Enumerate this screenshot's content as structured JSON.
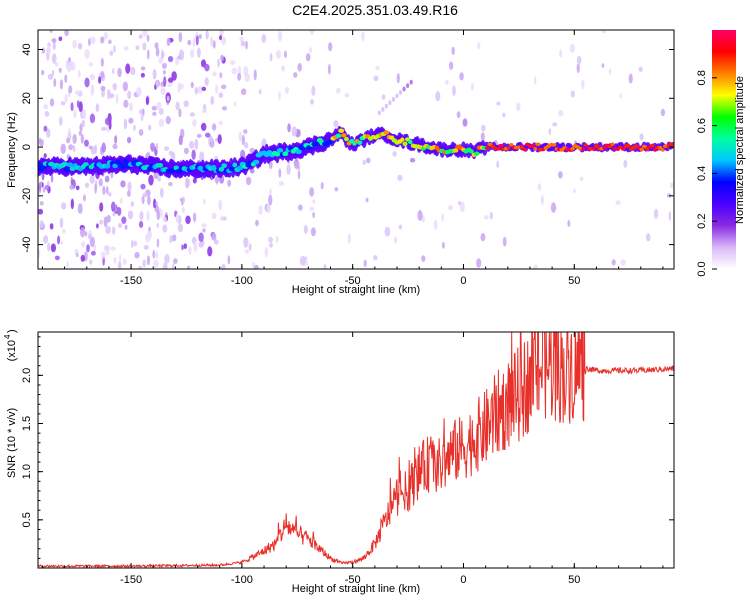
{
  "title": "C2E4.2025.351.03.49.R16",
  "chart_data": [
    {
      "type": "heatmap",
      "title": "C2E4.2025.351.03.49.R16",
      "xlabel": "Height of straight line (km)",
      "ylabel": "Frequency (Hz)",
      "xlim": [
        -192,
        95
      ],
      "ylim": [
        -50,
        48
      ],
      "xticks": [
        -150,
        -100,
        -50,
        0,
        50
      ],
      "yticks": [
        -40,
        -20,
        0,
        20,
        40
      ],
      "colorbar": {
        "label": "Normalized spectral amplitude",
        "range": [
          0,
          1
        ],
        "ticks": [
          "0.0",
          "0.2",
          "0.4",
          "0.6",
          "0.8"
        ],
        "colors": [
          "#ffffff",
          "#d8b8f8",
          "#8a2be2",
          "#4b00ff",
          "#0000ff",
          "#00c8ff",
          "#00ffa0",
          "#00ff00",
          "#ffff00",
          "#ff8000",
          "#ff0000",
          "#ff0066"
        ]
      },
      "ridge": {
        "x": [
          -192,
          -170,
          -150,
          -130,
          -110,
          -100,
          -95,
          -90,
          -80,
          -70,
          -60,
          -55,
          -52,
          -50,
          -45,
          -40,
          -35,
          -30,
          -20,
          -10,
          0,
          5,
          10,
          20,
          50,
          95
        ],
        "frequency": [
          -8,
          -8,
          -7,
          -9,
          -9,
          -8,
          -6,
          -3,
          -2,
          0,
          3,
          6,
          2,
          1,
          3,
          5,
          5,
          3,
          1,
          -1,
          -1,
          -2,
          0,
          0,
          0,
          0
        ]
      }
    },
    {
      "type": "line",
      "xlabel": "Height of straight line (km)",
      "ylabel": "SNR (10 * v/v)",
      "yscale_label": "(x10",
      "yscale_exponent": "4",
      "xlim": [
        -192,
        95
      ],
      "ylim": [
        0,
        2.45
      ],
      "xticks": [
        -150,
        -100,
        -50,
        0,
        50
      ],
      "yticks": [
        0.5,
        1.0,
        1.5,
        2.0
      ],
      "ytick_labels": [
        "0.5",
        "1.0",
        "1.5",
        "2.0"
      ],
      "color": "#e8302a",
      "series": [
        {
          "name": "SNR",
          "x": [
            -192,
            -150,
            -110,
            -100,
            -92,
            -85,
            -80,
            -75,
            -70,
            -65,
            -60,
            -55,
            -50,
            -45,
            -40,
            -35,
            -30,
            -25,
            -20,
            -15,
            -10,
            -5,
            0,
            5,
            10,
            15,
            20,
            25,
            30,
            35,
            40,
            45,
            50,
            60,
            70,
            80,
            95
          ],
          "values": [
            0.02,
            0.02,
            0.03,
            0.06,
            0.15,
            0.25,
            0.45,
            0.35,
            0.3,
            0.2,
            0.1,
            0.05,
            0.06,
            0.1,
            0.25,
            0.5,
            0.75,
            0.8,
            1.0,
            1.1,
            1.05,
            1.2,
            1.25,
            1.35,
            1.45,
            1.6,
            1.7,
            1.8,
            1.95,
            2.1,
            2.1,
            2.05,
            2.1,
            2.05,
            2.05,
            2.05,
            2.07
          ]
        }
      ]
    }
  ]
}
